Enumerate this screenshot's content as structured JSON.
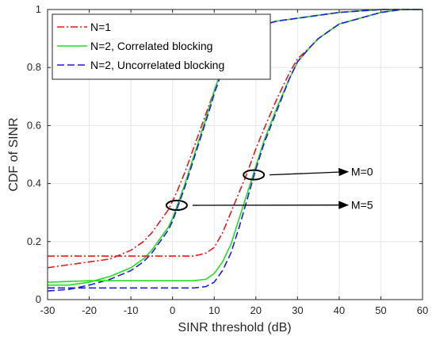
{
  "chart_data": {
    "type": "line",
    "xlabel": "SINR threshold (dB)",
    "ylabel": "CDF of SINR",
    "xlim": [
      -30,
      60
    ],
    "ylim": [
      0,
      1
    ],
    "xticks": [
      -30,
      -20,
      -10,
      0,
      10,
      20,
      30,
      40,
      50,
      60
    ],
    "yticks": [
      0,
      0.2,
      0.4,
      0.6,
      0.8,
      1
    ],
    "grid": true,
    "legend_position": "top-left",
    "legend": [
      "N=1",
      "N=2, Correlated blocking",
      "N=2, Uncorrelated blocking"
    ],
    "series": [
      {
        "name": "N=1",
        "group": "M=5",
        "color": "#e31a1c",
        "dash": "dashdot",
        "x": [
          -30,
          -25,
          -20,
          -15,
          -10,
          -7,
          -5,
          -3,
          -1,
          0,
          1,
          3,
          5,
          7,
          9,
          10,
          11,
          12,
          14,
          16,
          18,
          20,
          25,
          30,
          35,
          40,
          45,
          50,
          55,
          60
        ],
        "y": [
          0.11,
          0.12,
          0.13,
          0.14,
          0.17,
          0.2,
          0.23,
          0.27,
          0.31,
          0.34,
          0.37,
          0.44,
          0.52,
          0.6,
          0.68,
          0.72,
          0.76,
          0.8,
          0.85,
          0.89,
          0.92,
          0.94,
          0.96,
          0.97,
          0.98,
          0.99,
          0.995,
          1.0,
          1.0,
          1.0
        ]
      },
      {
        "name": "N=2, Correlated blocking",
        "group": "M=5",
        "color": "#22dd22",
        "dash": "solid",
        "x": [
          -30,
          -25,
          -20,
          -15,
          -10,
          -7,
          -5,
          -3,
          -1,
          0,
          1,
          3,
          5,
          7,
          9,
          10,
          11,
          12,
          14,
          16,
          18,
          20,
          25,
          30,
          35,
          40,
          45,
          50,
          55,
          60
        ],
        "y": [
          0.05,
          0.05,
          0.06,
          0.08,
          0.11,
          0.14,
          0.17,
          0.21,
          0.25,
          0.28,
          0.32,
          0.4,
          0.49,
          0.58,
          0.67,
          0.72,
          0.76,
          0.8,
          0.85,
          0.89,
          0.92,
          0.94,
          0.96,
          0.97,
          0.98,
          0.99,
          0.995,
          1.0,
          1.0,
          1.0
        ]
      },
      {
        "name": "N=2, Uncorrelated blocking",
        "group": "M=5",
        "color": "#1f1fd6",
        "dash": "dashed",
        "x": [
          -30,
          -25,
          -20,
          -15,
          -10,
          -7,
          -5,
          -3,
          -1,
          0,
          1,
          3,
          5,
          7,
          9,
          10,
          11,
          12,
          14,
          16,
          18,
          20,
          25,
          30,
          35,
          40,
          45,
          50,
          55,
          60
        ],
        "y": [
          0.03,
          0.035,
          0.05,
          0.07,
          0.1,
          0.13,
          0.16,
          0.2,
          0.24,
          0.27,
          0.31,
          0.39,
          0.48,
          0.57,
          0.66,
          0.71,
          0.75,
          0.8,
          0.85,
          0.89,
          0.92,
          0.94,
          0.96,
          0.97,
          0.98,
          0.99,
          0.995,
          1.0,
          1.0,
          1.0
        ]
      },
      {
        "name": "N=1",
        "group": "M=0",
        "color": "#e31a1c",
        "dash": "dashdot",
        "x": [
          -30,
          -20,
          -10,
          0,
          5,
          8,
          10,
          12,
          14,
          16,
          18,
          20,
          22,
          25,
          28,
          30,
          33,
          35,
          40,
          45,
          50,
          55,
          60
        ],
        "y": [
          0.15,
          0.15,
          0.15,
          0.15,
          0.15,
          0.16,
          0.18,
          0.23,
          0.3,
          0.37,
          0.44,
          0.52,
          0.59,
          0.69,
          0.78,
          0.83,
          0.87,
          0.9,
          0.95,
          0.97,
          0.99,
          1.0,
          1.0
        ]
      },
      {
        "name": "N=2, Correlated blocking",
        "group": "M=0",
        "color": "#22dd22",
        "dash": "solid",
        "x": [
          -30,
          -20,
          -10,
          0,
          5,
          8,
          10,
          12,
          14,
          16,
          18,
          20,
          22,
          25,
          28,
          30,
          33,
          35,
          40,
          45,
          50,
          55,
          60
        ],
        "y": [
          0.06,
          0.065,
          0.065,
          0.065,
          0.065,
          0.07,
          0.09,
          0.13,
          0.19,
          0.28,
          0.37,
          0.46,
          0.55,
          0.66,
          0.76,
          0.82,
          0.87,
          0.9,
          0.95,
          0.97,
          0.99,
          1.0,
          1.0
        ]
      },
      {
        "name": "N=2, Uncorrelated blocking",
        "group": "M=0",
        "color": "#1f1fd6",
        "dash": "dashed",
        "x": [
          -30,
          -20,
          -10,
          0,
          5,
          8,
          10,
          12,
          14,
          16,
          18,
          20,
          22,
          25,
          28,
          30,
          33,
          35,
          40,
          45,
          50,
          55,
          60
        ],
        "y": [
          0.04,
          0.04,
          0.04,
          0.04,
          0.04,
          0.045,
          0.06,
          0.1,
          0.16,
          0.25,
          0.35,
          0.45,
          0.54,
          0.65,
          0.76,
          0.82,
          0.87,
          0.9,
          0.95,
          0.97,
          0.99,
          1.0,
          1.0
        ]
      }
    ],
    "annotations": [
      {
        "text": "M=0",
        "ellipse_at": [
          19.5,
          0.43
        ],
        "label_at": [
          44,
          0.43
        ]
      },
      {
        "text": "M=5",
        "ellipse_at": [
          1,
          0.325
        ],
        "label_at": [
          44,
          0.315
        ]
      }
    ]
  }
}
